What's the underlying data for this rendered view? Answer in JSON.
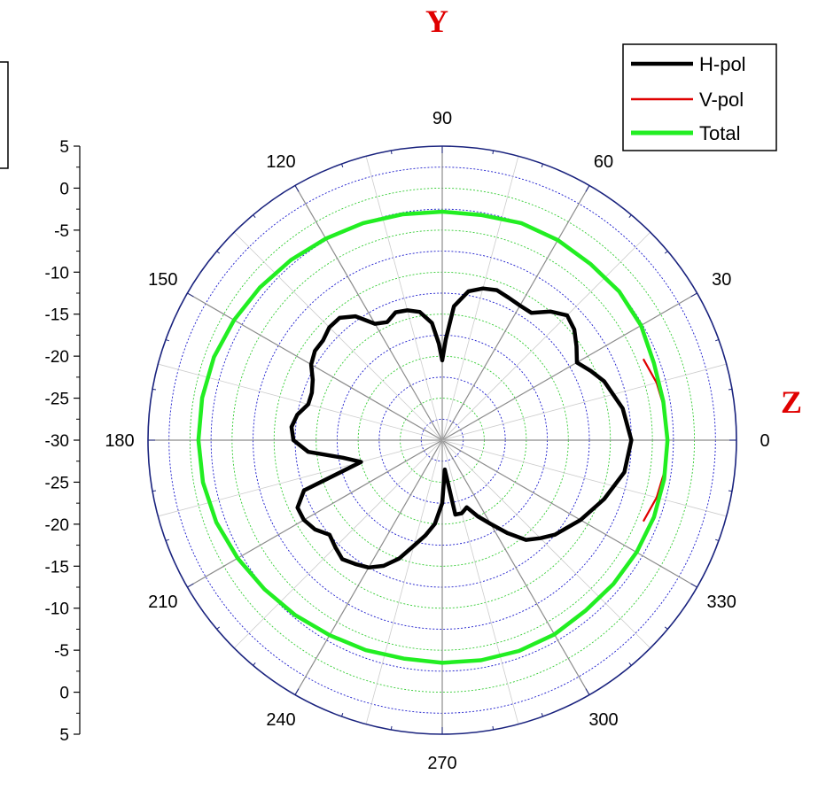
{
  "chart_data": {
    "type": "polar",
    "title": "",
    "axis_labels": {
      "vertical": "Y",
      "horizontal": "Z"
    },
    "radial_scale": {
      "ticks": [
        "5",
        "0",
        "-5",
        "-10",
        "-15",
        "-20",
        "-25",
        "-30",
        "-25",
        "-20",
        "-15",
        "-10",
        "-5",
        "0",
        "5"
      ],
      "range": [
        -30,
        5
      ],
      "major_step": 5
    },
    "angle_labels": [
      "0",
      "30",
      "60",
      "90",
      "120",
      "150",
      "180",
      "210",
      "240",
      "270",
      "300",
      "330"
    ],
    "angle_ticks_deg": [
      0,
      30,
      60,
      90,
      120,
      150,
      180,
      210,
      240,
      270,
      300,
      330
    ],
    "legend": {
      "position": "top-right",
      "entries": [
        {
          "label": "H-pol",
          "color": "#000000"
        },
        {
          "label": "V-pol",
          "color": "#e00000"
        },
        {
          "label": "Total",
          "color": "#22ee22"
        }
      ]
    },
    "series": [
      {
        "name": "H-pol",
        "color": "#000000",
        "angles_deg": [
          0,
          10,
          20,
          25,
          30,
          35,
          40,
          45,
          50,
          55,
          60,
          65,
          70,
          75,
          80,
          85,
          88,
          90,
          92,
          95,
          100,
          105,
          110,
          115,
          120,
          125,
          130,
          135,
          140,
          145,
          150,
          155,
          160,
          165,
          170,
          175,
          180,
          185,
          190,
          195,
          200,
          205,
          210,
          215,
          220,
          225,
          230,
          235,
          240,
          245,
          250,
          255,
          260,
          265,
          270,
          275,
          280,
          285,
          290,
          295,
          300,
          305,
          310,
          315,
          320,
          330,
          340,
          350,
          360
        ],
        "values_db": [
          -7.5,
          -8.2,
          -9.5,
          -10.5,
          -11.5,
          -10.5,
          -9.5,
          -9.0,
          -10.0,
          -11.5,
          -11.5,
          -11.3,
          -11.0,
          -11.3,
          -12.0,
          -14.0,
          -18.0,
          -20.5,
          -18.5,
          -16.0,
          -14.5,
          -14.0,
          -13.8,
          -14.5,
          -14.0,
          -12.0,
          -11.0,
          -11.0,
          -11.5,
          -11.5,
          -12.0,
          -13.0,
          -13.5,
          -13.5,
          -12.5,
          -12.0,
          -12.3,
          -14.0,
          -18.0,
          -20.0,
          -12.5,
          -11.0,
          -11.0,
          -11.5,
          -12.5,
          -12.0,
          -11.5,
          -12.0,
          -12.5,
          -13.5,
          -15.0,
          -17.0,
          -18.5,
          -20.0,
          -22.5,
          -26.5,
          -21.0,
          -21.0,
          -21.5,
          -20.0,
          -18.5,
          -16.5,
          -14.5,
          -13.5,
          -12.5,
          -11.0,
          -9.5,
          -8.0,
          -7.5
        ]
      },
      {
        "name": "V-pol",
        "color": "#e00000",
        "angles_deg": [
          -22,
          -15,
          -8,
          0,
          8,
          15,
          22
        ],
        "values_db": [
          -4.2,
          -3.6,
          -3.3,
          -3.2,
          -3.3,
          -3.6,
          -4.2
        ]
      },
      {
        "name": "Total",
        "color": "#22ee22",
        "angles_deg": [
          0,
          10,
          20,
          30,
          40,
          50,
          60,
          70,
          80,
          90,
          100,
          110,
          120,
          130,
          140,
          150,
          160,
          170,
          180,
          190,
          200,
          210,
          220,
          230,
          240,
          250,
          260,
          270,
          280,
          290,
          300,
          310,
          320,
          330,
          340,
          350,
          360
        ],
        "values_db": [
          -3.2,
          -3.3,
          -3.2,
          -2.7,
          -2.5,
          -2.6,
          -2.5,
          -2.5,
          -2.8,
          -2.8,
          -2.7,
          -2.5,
          -2.3,
          -2.0,
          -1.7,
          -1.4,
          -1.1,
          -1.0,
          -1.0,
          -1.1,
          -1.4,
          -1.9,
          -2.4,
          -2.8,
          -3.2,
          -3.4,
          -3.6,
          -3.5,
          -3.4,
          -3.3,
          -3.3,
          -3.5,
          -3.4,
          -3.3,
          -3.2,
          -3.2,
          -3.2
        ]
      }
    ]
  }
}
